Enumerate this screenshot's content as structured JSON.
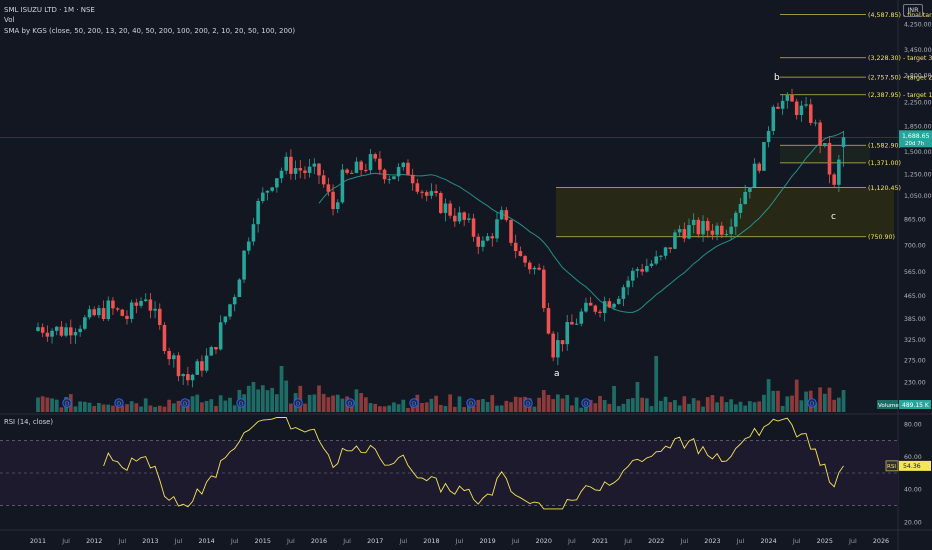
{
  "header": {
    "title": "SML ISUZU LTD · 1M · NSE",
    "vol_label": "Vol",
    "sma_label": "SMA by KGS (close, 50, 200, 13, 20, 40, 50, 200, 100, 200, 2, 10, 20, 50, 100, 200)",
    "currency": "INR"
  },
  "colors": {
    "background": "#131722",
    "up": "#26a69a",
    "down": "#ef5350",
    "sma": "#26a69a",
    "annotation": "#f5e55c",
    "zone_fill": "#2b2c14",
    "rsi_line": "#f5e55c",
    "rsi_band": "#1c1a2c",
    "volume_up": "#1d6d66",
    "volume_down": "#8c3a3a"
  },
  "price_axis": {
    "ticks": [
      "4,250.00",
      "3,450.00",
      "2,800.00",
      "2,250.00",
      "1,850.00",
      "1,500.00",
      "1,250.00",
      "1,050.00",
      "865.00",
      "700.00",
      "565.00",
      "465.00",
      "385.00",
      "325.00",
      "275.00",
      "230.00"
    ],
    "current_price": "1,688.65",
    "countdown": "20d 7h"
  },
  "levels": [
    {
      "label": "(4,587.85) - final target",
      "price": 4587.85
    },
    {
      "label": "(3,228.30) - target 3",
      "price": 3228.3
    },
    {
      "label": "(2,757.50) - target 2",
      "price": 2757.5
    },
    {
      "label": "(2,387.95) - target 1",
      "price": 2387.95
    },
    {
      "label": "(1,582.90)",
      "price": 1582.9
    },
    {
      "label": "(1,371.00)",
      "price": 1371.0
    },
    {
      "label": "(1,120.45)",
      "price": 1120.45
    },
    {
      "label": "(750.90)",
      "price": 750.9
    }
  ],
  "wave_labels": [
    "a",
    "b",
    "c"
  ],
  "volume": {
    "label": "Volume",
    "value": "489.15 K"
  },
  "rsi": {
    "title": "RSI (14, close)",
    "ticks": [
      "80.00",
      "60.00",
      "40.00",
      "20.00"
    ],
    "tag": "RSI",
    "value": "54.36"
  },
  "time_axis": [
    "2011",
    "Jul",
    "2012",
    "Jul",
    "2013",
    "Jul",
    "2014",
    "Jul",
    "2015",
    "Jul",
    "2016",
    "Jul",
    "2017",
    "Jul",
    "2018",
    "Jul",
    "2019",
    "Jul",
    "2020",
    "Jul",
    "2021",
    "Jul",
    "2022",
    "Jul",
    "2023",
    "Jul",
    "2024",
    "Jul",
    "2025",
    "Jul",
    "2026"
  ],
  "chart_data": {
    "type": "candlestick",
    "scale": "log",
    "symbol": "SML ISUZU LTD",
    "interval": "1M",
    "exchange": "NSE",
    "anchors": [
      [
        "2011-01",
        360
      ],
      [
        "2011-06",
        350
      ],
      [
        "2011-12",
        385
      ],
      [
        "2012-04",
        420
      ],
      [
        "2012-08",
        390
      ],
      [
        "2012-12",
        470
      ],
      [
        "2013-05",
        290
      ],
      [
        "2013-09",
        235
      ],
      [
        "2014-02",
        290
      ],
      [
        "2014-07",
        480
      ],
      [
        "2014-11",
        900
      ],
      [
        "2015-03",
        1200
      ],
      [
        "2015-06",
        1350
      ],
      [
        "2015-10",
        1280
      ],
      [
        "2016-01",
        1250
      ],
      [
        "2016-04",
        950
      ],
      [
        "2016-06",
        1200
      ],
      [
        "2016-12",
        1380
      ],
      [
        "2017-04",
        1250
      ],
      [
        "2017-08",
        1300
      ],
      [
        "2017-12",
        1050
      ],
      [
        "2018-04",
        950
      ],
      [
        "2018-08",
        850
      ],
      [
        "2018-12",
        700
      ],
      [
        "2019-04",
        880
      ],
      [
        "2019-08",
        630
      ],
      [
        "2019-12",
        560
      ],
      [
        "2020-03",
        300
      ],
      [
        "2020-09",
        400
      ],
      [
        "2021-04",
        460
      ],
      [
        "2021-09",
        580
      ],
      [
        "2022-02",
        620
      ],
      [
        "2022-06",
        800
      ],
      [
        "2022-12",
        800
      ],
      [
        "2023-04",
        820
      ],
      [
        "2023-08",
        1100
      ],
      [
        "2023-12",
        1500
      ],
      [
        "2024-02",
        2300
      ],
      [
        "2024-06",
        2200
      ],
      [
        "2024-10",
        2000
      ],
      [
        "2025-01",
        1500
      ],
      [
        "2025-03",
        1100
      ],
      [
        "2025-05",
        1688.65
      ]
    ]
  }
}
